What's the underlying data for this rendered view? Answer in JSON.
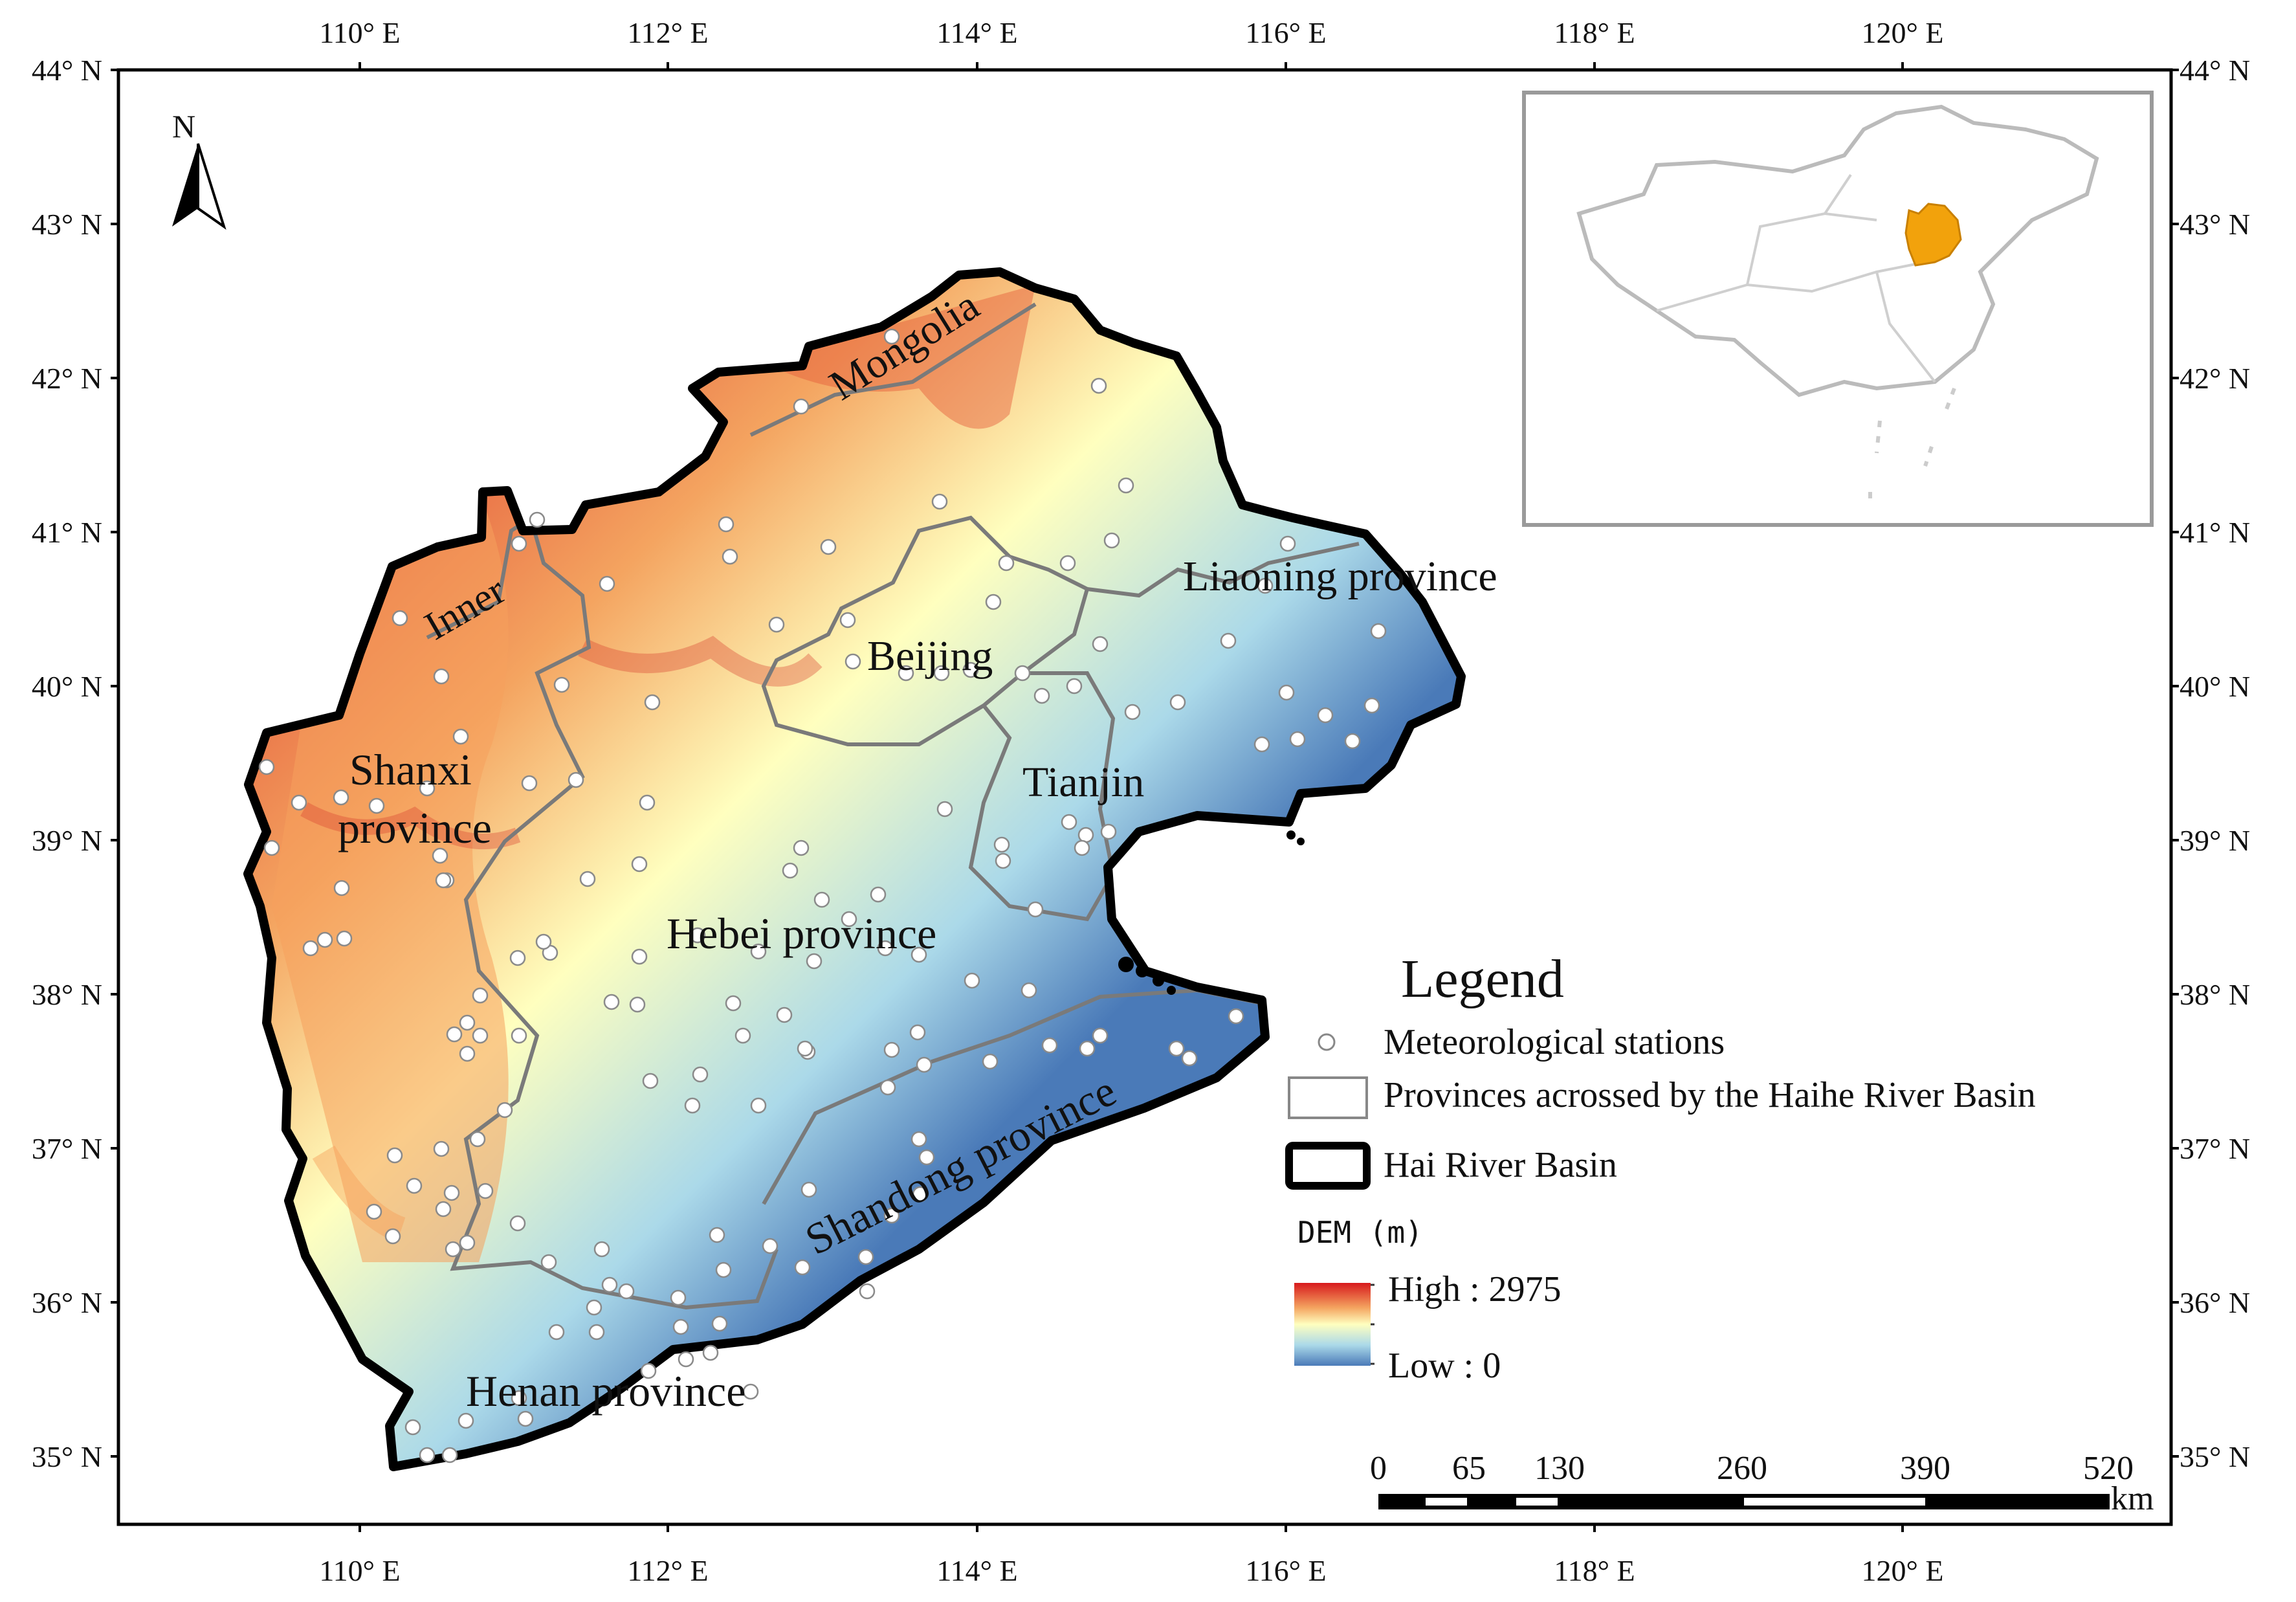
{
  "axes": {
    "top_ticks": [
      "110° E",
      "112° E",
      "114° E",
      "116° E",
      "118° E",
      "120° E"
    ],
    "bottom_ticks": [
      "110° E",
      "112° E",
      "114° E",
      "116° E",
      "118° E",
      "120° E"
    ],
    "left_ticks": [
      "44° N",
      "43° N",
      "42° N",
      "41° N",
      "40° N",
      "39° N",
      "38° N",
      "37° N",
      "36° N",
      "35° N"
    ],
    "right_ticks": [
      "44° N",
      "43° N",
      "42° N",
      "41° N",
      "40° N",
      "39° N",
      "38° N",
      "37° N",
      "36° N",
      "35° N"
    ]
  },
  "north_arrow": {
    "letter": "N"
  },
  "region_labels": {
    "mongolia": "Mongolia",
    "inner": "Inner",
    "beijing": "Beijing",
    "liaoning": "Liaoning province",
    "shanxi_1": "Shanxi",
    "shanxi_2": "province",
    "tianjin": "Tianjin",
    "hebei": "Hebei province",
    "shandong": "Shandong province",
    "henan": "Henan province"
  },
  "legend": {
    "title": "Legend",
    "stations": "Meteorological stations",
    "provinces": "Provinces acrossed by the Haihe River Basin",
    "basin": "Hai River Basin",
    "dem_title": "DEM (m)",
    "dem_high": "High : 2975",
    "dem_low": "Low : 0"
  },
  "scale_bar": {
    "ticks": [
      "0",
      "65",
      "130",
      "260",
      "390",
      "520"
    ],
    "unit": "km"
  },
  "colors": {
    "dem_high": "#d7191c",
    "dem_mid_high": "#f4a460",
    "dem_mid": "#ffffbf",
    "dem_mid_low": "#abd9e9",
    "dem_low": "#4a7ab8",
    "inset_highlight": "#f2a20c",
    "province_border": "#7a7a7a",
    "basin_border": "#000000"
  }
}
